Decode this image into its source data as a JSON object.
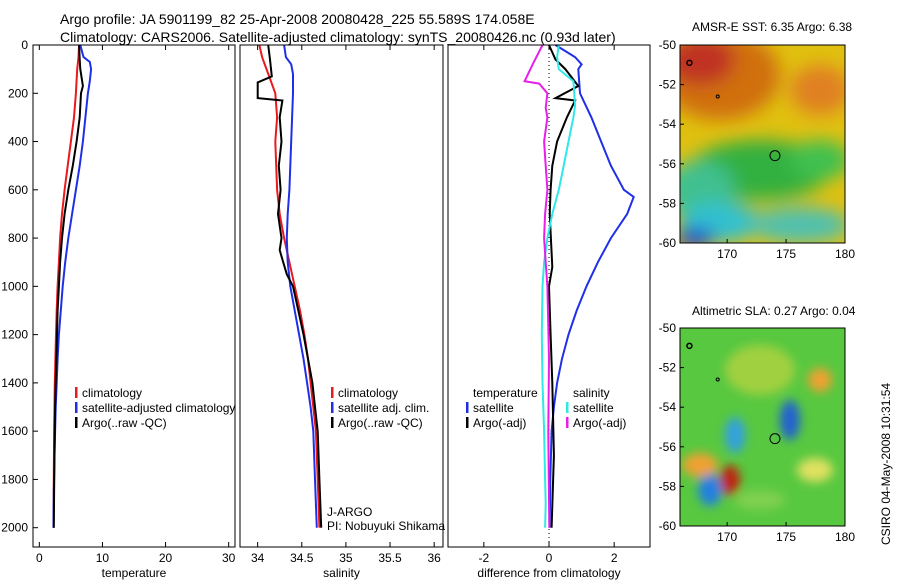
{
  "title": {
    "line1": "Argo profile: JA 5901199_82 25-Apr-2008 20080428_225 55.589S 174.058E",
    "line2": "Climatology: CARS2006. Satellite-adjusted climatology: synTS_20080426.nc (0.93d later)"
  },
  "side_label": "CSIRO 04-May-2008 10:31:54",
  "colors": {
    "climatology": "#e8191f",
    "satellite": "#1f2fe8",
    "argo": "#000000",
    "salinity_sat": "#2fe8e8",
    "salinity_argo": "#e81fe8"
  },
  "chart_data": [
    {
      "type": "line",
      "xlabel": "temperature",
      "xlim": [
        -1,
        31
      ],
      "ylim": [
        2080,
        0
      ],
      "xticks": [
        0,
        10,
        20,
        30
      ],
      "yticks": [
        0,
        200,
        400,
        600,
        800,
        1000,
        1200,
        1400,
        1600,
        1800,
        2000
      ],
      "legend": [
        "climatology",
        "satellite-adjusted climatology",
        "Argo(..raw -QC)"
      ],
      "series": [
        {
          "name": "climatology",
          "color": "#e8191f",
          "x": [
            6.3,
            6.2,
            6.0,
            5.8,
            5.5,
            5.0,
            4.5,
            4.0,
            3.6,
            3.3,
            3.1,
            2.9,
            2.75,
            2.65,
            2.55,
            2.45,
            2.4,
            2.35,
            2.3,
            2.25
          ],
          "y": [
            0,
            50,
            100,
            200,
            300,
            400,
            500,
            600,
            700,
            800,
            900,
            1000,
            1100,
            1200,
            1300,
            1400,
            1500,
            1600,
            1800,
            2000
          ]
        },
        {
          "name": "satellite-adjusted climatology",
          "color": "#1f2fe8",
          "x": [
            6.5,
            7.0,
            8.0,
            8.2,
            8.0,
            7.7,
            7.3,
            6.9,
            6.4,
            5.8,
            5.2,
            4.6,
            4.1,
            3.7,
            3.4,
            3.1,
            2.9,
            2.75,
            2.6,
            2.5,
            2.4,
            2.3,
            2.25
          ],
          "y": [
            0,
            50,
            70,
            100,
            150,
            200,
            300,
            400,
            500,
            600,
            700,
            800,
            900,
            1000,
            1100,
            1200,
            1300,
            1400,
            1500,
            1600,
            1700,
            1850,
            2000
          ]
        },
        {
          "name": "Argo(..raw -QC)",
          "color": "#000000",
          "x": [
            6.3,
            6.4,
            6.5,
            6.9,
            6.6,
            6.4,
            5.9,
            5.3,
            4.6,
            4.0,
            3.6,
            3.3,
            3.1,
            2.9,
            2.8,
            2.7,
            2.6,
            2.5,
            2.45,
            2.4,
            2.35,
            2.3
          ],
          "y": [
            0,
            60,
            100,
            170,
            200,
            300,
            400,
            500,
            600,
            700,
            800,
            900,
            1000,
            1100,
            1200,
            1300,
            1400,
            1500,
            1600,
            1700,
            1850,
            2000
          ]
        }
      ]
    },
    {
      "type": "line",
      "xlabel": "salinity",
      "xlim": [
        33.8,
        36.1
      ],
      "ylim": [
        2080,
        0
      ],
      "xticks": [
        34,
        34.5,
        35,
        35.5,
        36
      ],
      "xticklabels": [
        "34",
        "34.5",
        "35",
        "35.5",
        "36"
      ],
      "legend": [
        "climatology",
        "satellite adj. clim.",
        "Argo(..raw -QC)"
      ],
      "annotations": [
        "J-ARGO",
        "PI: Nobuyuki Shikama"
      ],
      "series": [
        {
          "name": "climatology",
          "color": "#e8191f",
          "x": [
            34.02,
            34.05,
            34.1,
            34.15,
            34.2,
            34.22,
            34.2,
            34.21,
            34.22,
            34.25,
            34.3,
            34.36,
            34.42,
            34.48,
            34.53,
            34.57,
            34.6,
            34.63,
            34.66,
            34.68,
            34.7
          ],
          "y": [
            0,
            50,
            100,
            150,
            200,
            300,
            400,
            500,
            600,
            700,
            800,
            900,
            1000,
            1100,
            1200,
            1300,
            1400,
            1500,
            1600,
            1800,
            2000
          ]
        },
        {
          "name": "satellite adj. clim.",
          "color": "#1f2fe8",
          "x": [
            34.3,
            34.32,
            34.38,
            34.4,
            34.4,
            34.39,
            34.38,
            34.37,
            34.36,
            34.34,
            34.33,
            34.34,
            34.37,
            34.42,
            34.47,
            34.52,
            34.56,
            34.6,
            34.63,
            34.65,
            34.67
          ],
          "y": [
            0,
            50,
            80,
            120,
            200,
            300,
            400,
            500,
            600,
            700,
            800,
            900,
            1000,
            1100,
            1200,
            1300,
            1400,
            1500,
            1600,
            1800,
            2000
          ]
        },
        {
          "name": "Argo(..raw -QC)",
          "color": "#000000",
          "x": [
            34.12,
            34.14,
            34.16,
            34.0,
            34.0,
            34.28,
            34.25,
            34.27,
            34.24,
            34.26,
            34.23,
            34.27,
            34.25,
            34.29,
            34.33,
            34.4,
            34.46,
            34.52,
            34.57,
            34.62,
            34.65,
            34.68,
            34.7,
            34.72
          ],
          "y": [
            0,
            60,
            130,
            155,
            220,
            230,
            300,
            400,
            500,
            600,
            700,
            800,
            850,
            900,
            950,
            1000,
            1100,
            1200,
            1300,
            1400,
            1500,
            1600,
            1800,
            2000
          ]
        }
      ]
    },
    {
      "type": "line",
      "xlabel": "difference from climatology",
      "xlim": [
        -3.1,
        3.1
      ],
      "ylim": [
        2080,
        0
      ],
      "xticks": [
        -2,
        0,
        2
      ],
      "xticklabels": [
        "-2",
        "0",
        "2"
      ],
      "legend": [
        "temperature",
        "satellite",
        "Argo(-adj)",
        "salinity",
        "satellite",
        "Argo(-adj)"
      ],
      "series": [
        {
          "name": "satellite",
          "color": "#1f2fe8",
          "x": [
            0.2,
            0.8,
            1.0,
            0.9,
            0.95,
            1.3,
            1.6,
            1.9,
            2.3,
            2.6,
            2.4,
            1.9,
            1.5,
            1.15,
            0.85,
            0.6,
            0.4,
            0.25,
            0.15,
            0.08,
            0.04,
            0.02
          ],
          "y": [
            0,
            50,
            80,
            100,
            200,
            300,
            400,
            500,
            600,
            630,
            700,
            800,
            900,
            1000,
            1100,
            1200,
            1300,
            1400,
            1500,
            1600,
            1800,
            2000
          ]
        },
        {
          "name": "Argo(-adj)",
          "color": "#000000",
          "x": [
            0.0,
            0.2,
            0.5,
            0.9,
            0.2,
            0.8,
            0.55,
            0.25,
            0.1,
            0.05,
            0.02,
            0.1,
            0.0,
            0.05,
            0.1,
            0.15,
            0.08
          ],
          "y": [
            0,
            60,
            100,
            170,
            220,
            230,
            300,
            400,
            500,
            600,
            700,
            920,
            1000,
            1200,
            1400,
            1700,
            2000
          ]
        },
        {
          "name": "salinity satellite",
          "color": "#2fe8e8",
          "x": [
            0.3,
            0.25,
            0.3,
            0.75,
            0.8,
            0.75,
            0.6,
            0.45,
            0.3,
            0.1,
            -0.05,
            -0.15,
            -0.2,
            -0.22,
            -0.2,
            -0.15,
            -0.12,
            -0.1,
            -0.12
          ],
          "y": [
            0,
            50,
            100,
            150,
            250,
            300,
            400,
            500,
            600,
            700,
            800,
            900,
            1000,
            1200,
            1400,
            1600,
            1800,
            1900,
            2000
          ]
        },
        {
          "name": "salinity Argo(-adj)",
          "color": "#e81fe8",
          "x": [
            -0.2,
            -0.5,
            -0.75,
            -0.3,
            -0.05,
            -0.1,
            -0.05,
            -0.15,
            -0.1,
            -0.05,
            -0.12,
            -0.15,
            -0.1,
            -0.05,
            0.0,
            -0.02,
            0.01
          ],
          "y": [
            0,
            80,
            150,
            160,
            200,
            260,
            300,
            400,
            500,
            600,
            700,
            800,
            900,
            1000,
            1300,
            1600,
            2000
          ]
        }
      ]
    },
    {
      "type": "heatmap",
      "title": "AMSR-E SST: 6.35 Argo: 6.38",
      "xlim": [
        166,
        180
      ],
      "ylim": [
        -60,
        -50
      ],
      "xticks": [
        170,
        175,
        180
      ],
      "yticks": [
        -50,
        -52,
        -54,
        -56,
        -58,
        -60
      ],
      "xticklabels": [
        "170",
        "175",
        "180"
      ],
      "marker": [
        174.058,
        -55.589
      ]
    },
    {
      "type": "heatmap",
      "title": "Altimetric SLA: 0.27 Argo: 0.04",
      "xlim": [
        166,
        180
      ],
      "ylim": [
        -60,
        -50
      ],
      "xticks": [
        170,
        175,
        180
      ],
      "yticks": [
        -50,
        -52,
        -54,
        -56,
        -58,
        -60
      ],
      "xticklabels": [
        "170",
        "175",
        "180"
      ],
      "marker": [
        174.058,
        -55.589
      ]
    }
  ]
}
